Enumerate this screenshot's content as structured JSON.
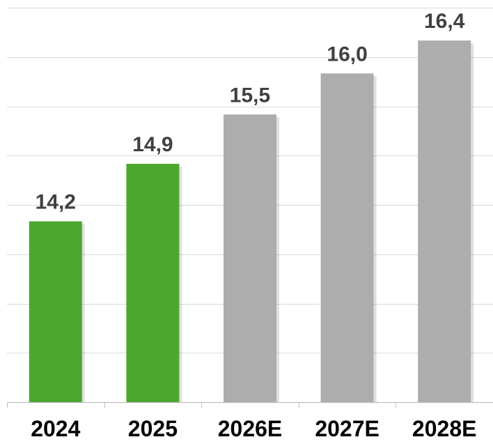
{
  "chart_data": {
    "type": "bar",
    "categories": [
      "2024",
      "2025",
      "2026E",
      "2027E",
      "2028E"
    ],
    "values": [
      14.2,
      14.9,
      15.5,
      16.0,
      16.4
    ],
    "data_labels": [
      "14,2",
      "14,9",
      "15,5",
      "16,0",
      "16,4"
    ],
    "bar_colors": [
      "#4ea72e",
      "#4ea72e",
      "#adadad",
      "#adadad",
      "#adadad"
    ],
    "ylim": [
      12.0,
      16.8
    ],
    "grid": true,
    "title": "",
    "xlabel": "",
    "ylabel": ""
  }
}
